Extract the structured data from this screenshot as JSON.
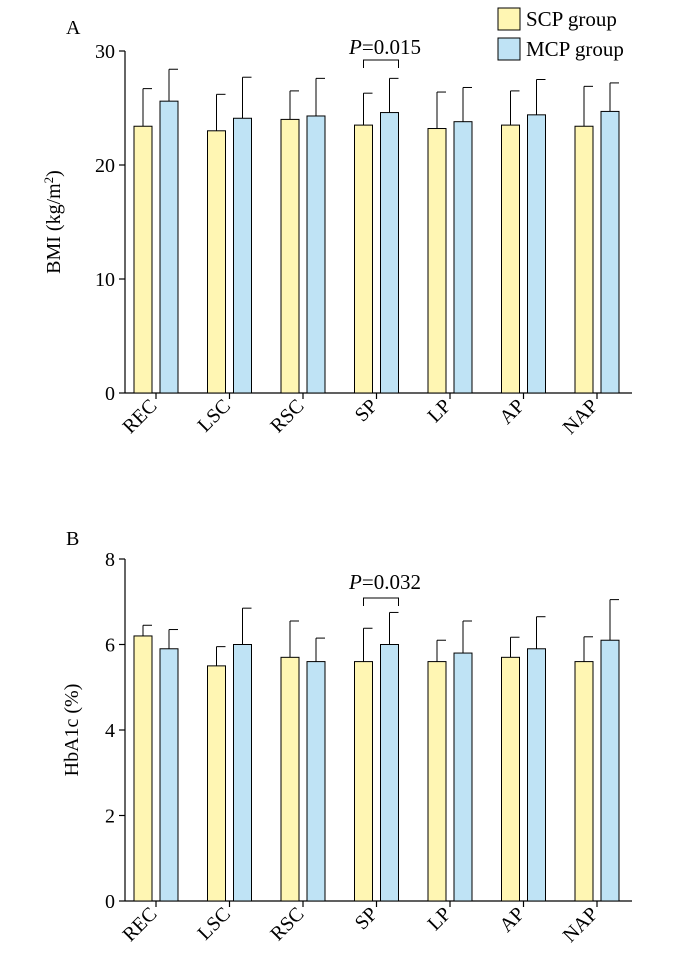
{
  "legend": {
    "items": [
      {
        "label": "SCP group",
        "color": "#fff6b3"
      },
      {
        "label": "MCP group",
        "color": "#bfe3f5"
      }
    ]
  },
  "colors": {
    "scp": "#fff6b3",
    "mcp": "#bfe3f5",
    "stroke": "#000000"
  },
  "chart_data": [
    {
      "type": "bar",
      "panel": "A",
      "ylabel_main": "BMI (kg/m",
      "ylabel_sup": "2",
      "ylabel_close": ")",
      "ylim": [
        0,
        30
      ],
      "yticks": [
        0,
        10,
        20,
        30
      ],
      "categories": [
        "REC",
        "LSC",
        "RSC",
        "SP",
        "LP",
        "AP",
        "NAP"
      ],
      "series": [
        {
          "name": "SCP group",
          "values": [
            23.4,
            23.0,
            24.0,
            23.5,
            23.2,
            23.5,
            23.4
          ],
          "errors": [
            3.3,
            3.2,
            2.5,
            2.8,
            3.2,
            3.0,
            3.5
          ]
        },
        {
          "name": "MCP group",
          "values": [
            25.6,
            24.1,
            24.3,
            24.6,
            23.8,
            24.4,
            24.7
          ],
          "errors": [
            2.8,
            3.6,
            3.3,
            3.0,
            3.0,
            3.1,
            2.5
          ]
        }
      ],
      "annotation": {
        "category": "SP",
        "p_italic": "P",
        "p_value": "=0.015"
      }
    },
    {
      "type": "bar",
      "panel": "B",
      "ylabel_main": "HbA1c (%)",
      "ylabel_sup": "",
      "ylabel_close": "",
      "ylim": [
        0,
        8
      ],
      "yticks": [
        0,
        2,
        4,
        6,
        8
      ],
      "categories": [
        "REC",
        "LSC",
        "RSC",
        "SP",
        "LP",
        "AP",
        "NAP"
      ],
      "series": [
        {
          "name": "SCP group",
          "values": [
            6.2,
            5.5,
            5.7,
            5.6,
            5.6,
            5.7,
            5.6
          ],
          "errors": [
            0.25,
            0.45,
            0.85,
            0.78,
            0.5,
            0.47,
            0.58
          ]
        },
        {
          "name": "MCP group",
          "values": [
            5.9,
            6.0,
            5.6,
            6.0,
            5.8,
            5.9,
            6.1
          ],
          "errors": [
            0.45,
            0.85,
            0.55,
            0.75,
            0.75,
            0.75,
            0.95
          ]
        }
      ],
      "annotation": {
        "category": "SP",
        "p_italic": "P",
        "p_value": "=0.032"
      }
    }
  ]
}
